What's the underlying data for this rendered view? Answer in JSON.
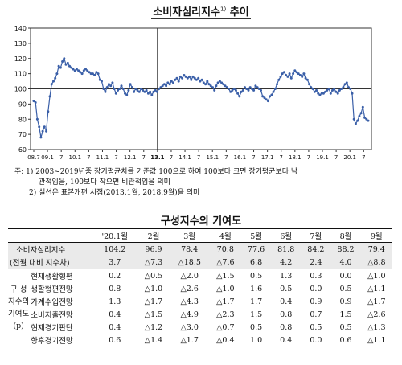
{
  "chart_data": {
    "type": "line",
    "title": "소비자심리지수",
    "title_note": "1)",
    "title_suffix": "추이",
    "ylim": [
      60,
      140
    ],
    "yticks": [
      60,
      70,
      80,
      90,
      100,
      110,
      120,
      130,
      140
    ],
    "xtick_labels": [
      "08.7",
      "09.1",
      "7",
      "10.1",
      "7",
      "11.1",
      "7",
      "12.1",
      "7",
      "13.1",
      "7",
      "14.1",
      "7",
      "15.1",
      "7",
      "16.1",
      "7",
      "17.1",
      "7",
      "18.1",
      "7",
      "19.1",
      "7",
      "20.1",
      "7"
    ],
    "bold_xtick": "13.1",
    "reference_value": 100,
    "line_color": "#3a5fa8",
    "x_start": "2008-07",
    "series": [
      {
        "values": [
          92,
          91,
          80,
          75,
          68,
          72,
          75,
          72,
          85,
          95,
          103,
          105,
          107,
          110,
          115,
          114,
          118,
          120,
          116,
          117,
          115,
          114,
          113,
          112,
          113,
          112,
          111,
          110,
          112,
          113,
          112,
          111,
          110,
          110,
          109,
          111,
          110,
          106,
          105,
          100,
          98,
          101,
          103,
          102,
          104,
          100,
          97,
          99,
          100,
          102,
          100,
          97,
          96,
          99,
          103,
          101,
          98,
          100,
          99,
          98,
          100,
          99,
          98,
          99,
          97,
          98,
          96,
          98,
          99,
          98,
          100,
          101,
          102,
          103,
          102,
          104,
          103,
          105,
          104,
          106,
          107,
          105,
          108,
          107,
          109,
          108,
          107,
          108,
          106,
          108,
          107,
          106,
          107,
          105,
          106,
          104,
          103,
          105,
          103,
          102,
          101,
          99,
          102,
          104,
          105,
          104,
          103,
          102,
          101,
          100,
          98,
          99,
          100,
          99,
          97,
          95,
          98,
          99,
          101,
          100,
          99,
          101,
          100,
          99,
          102,
          101,
          100,
          99,
          95,
          94,
          93,
          92,
          95,
          96,
          98,
          100,
          103,
          106,
          108,
          110,
          111,
          109,
          108,
          110,
          107,
          110,
          112,
          111,
          110,
          109,
          108,
          110,
          107,
          106,
          103,
          101,
          100,
          98,
          99,
          97,
          96,
          97,
          97,
          98,
          99,
          100,
          97,
          99,
          100,
          98,
          97,
          99,
          100,
          101,
          103,
          104,
          101,
          100,
          97,
          80,
          77,
          79,
          82,
          84,
          88,
          81,
          80,
          79
        ]
      }
    ]
  },
  "notes": [
    "주: 1) 2003~2019년중 장기평균치를 기준값 100으로 하여 100보다 크면 장기평균보다 낙",
    "관적임을, 100보다 작으면 비관적임을 의미",
    "2) 실선은 표본개편 시점(2013.1월, 2018.9월)을 의미"
  ],
  "table": {
    "title": "구성지수의 기여도",
    "months": [
      "'20.1월",
      "2월",
      "3월",
      "4월",
      "5월",
      "6월",
      "7월",
      "8월",
      "9월"
    ],
    "total": {
      "label": "소비자심리지수",
      "values": [
        "104.2",
        "96.9",
        "78.4",
        "70.8",
        "77.6",
        "81.8",
        "84.2",
        "88.2",
        "79.4"
      ]
    },
    "change": {
      "label": "(전월 대비 지수차)",
      "values": [
        "3.7",
        "△7.3",
        "△18.5",
        "△7.6",
        "6.8",
        "4.2",
        "2.4",
        "4.0",
        "△8.8"
      ]
    },
    "group_label": [
      "구 성",
      "지수의",
      "기여도",
      "(p)"
    ],
    "rows": [
      {
        "label": "현재생활형편",
        "values": [
          "0.2",
          "△0.5",
          "△2.0",
          "△1.5",
          "0.5",
          "1.3",
          "0.3",
          "0.0",
          "△1.0"
        ]
      },
      {
        "label": "생활형편전망",
        "values": [
          "0.8",
          "△1.0",
          "△2.6",
          "△1.0",
          "1.6",
          "0.5",
          "0.0",
          "0.5",
          "△1.1"
        ]
      },
      {
        "label": "가계수입전망",
        "values": [
          "1.3",
          "△1.7",
          "△4.3",
          "△1.7",
          "1.7",
          "0.4",
          "0.9",
          "0.9",
          "△1.7"
        ]
      },
      {
        "label": "소비지출전망",
        "values": [
          "0.4",
          "△1.5",
          "△4.9",
          "△2.3",
          "1.5",
          "0.8",
          "0.7",
          "1.5",
          "△2.6"
        ]
      },
      {
        "label": "현재경기판단",
        "values": [
          "0.4",
          "△1.2",
          "△3.0",
          "△0.7",
          "0.5",
          "0.8",
          "0.5",
          "0.5",
          "△1.3"
        ]
      },
      {
        "label": "향후경기전망",
        "values": [
          "0.6",
          "△1.4",
          "△1.7",
          "△0.4",
          "1.0",
          "0.4",
          "0.0",
          "0.6",
          "△1.1"
        ]
      }
    ]
  }
}
